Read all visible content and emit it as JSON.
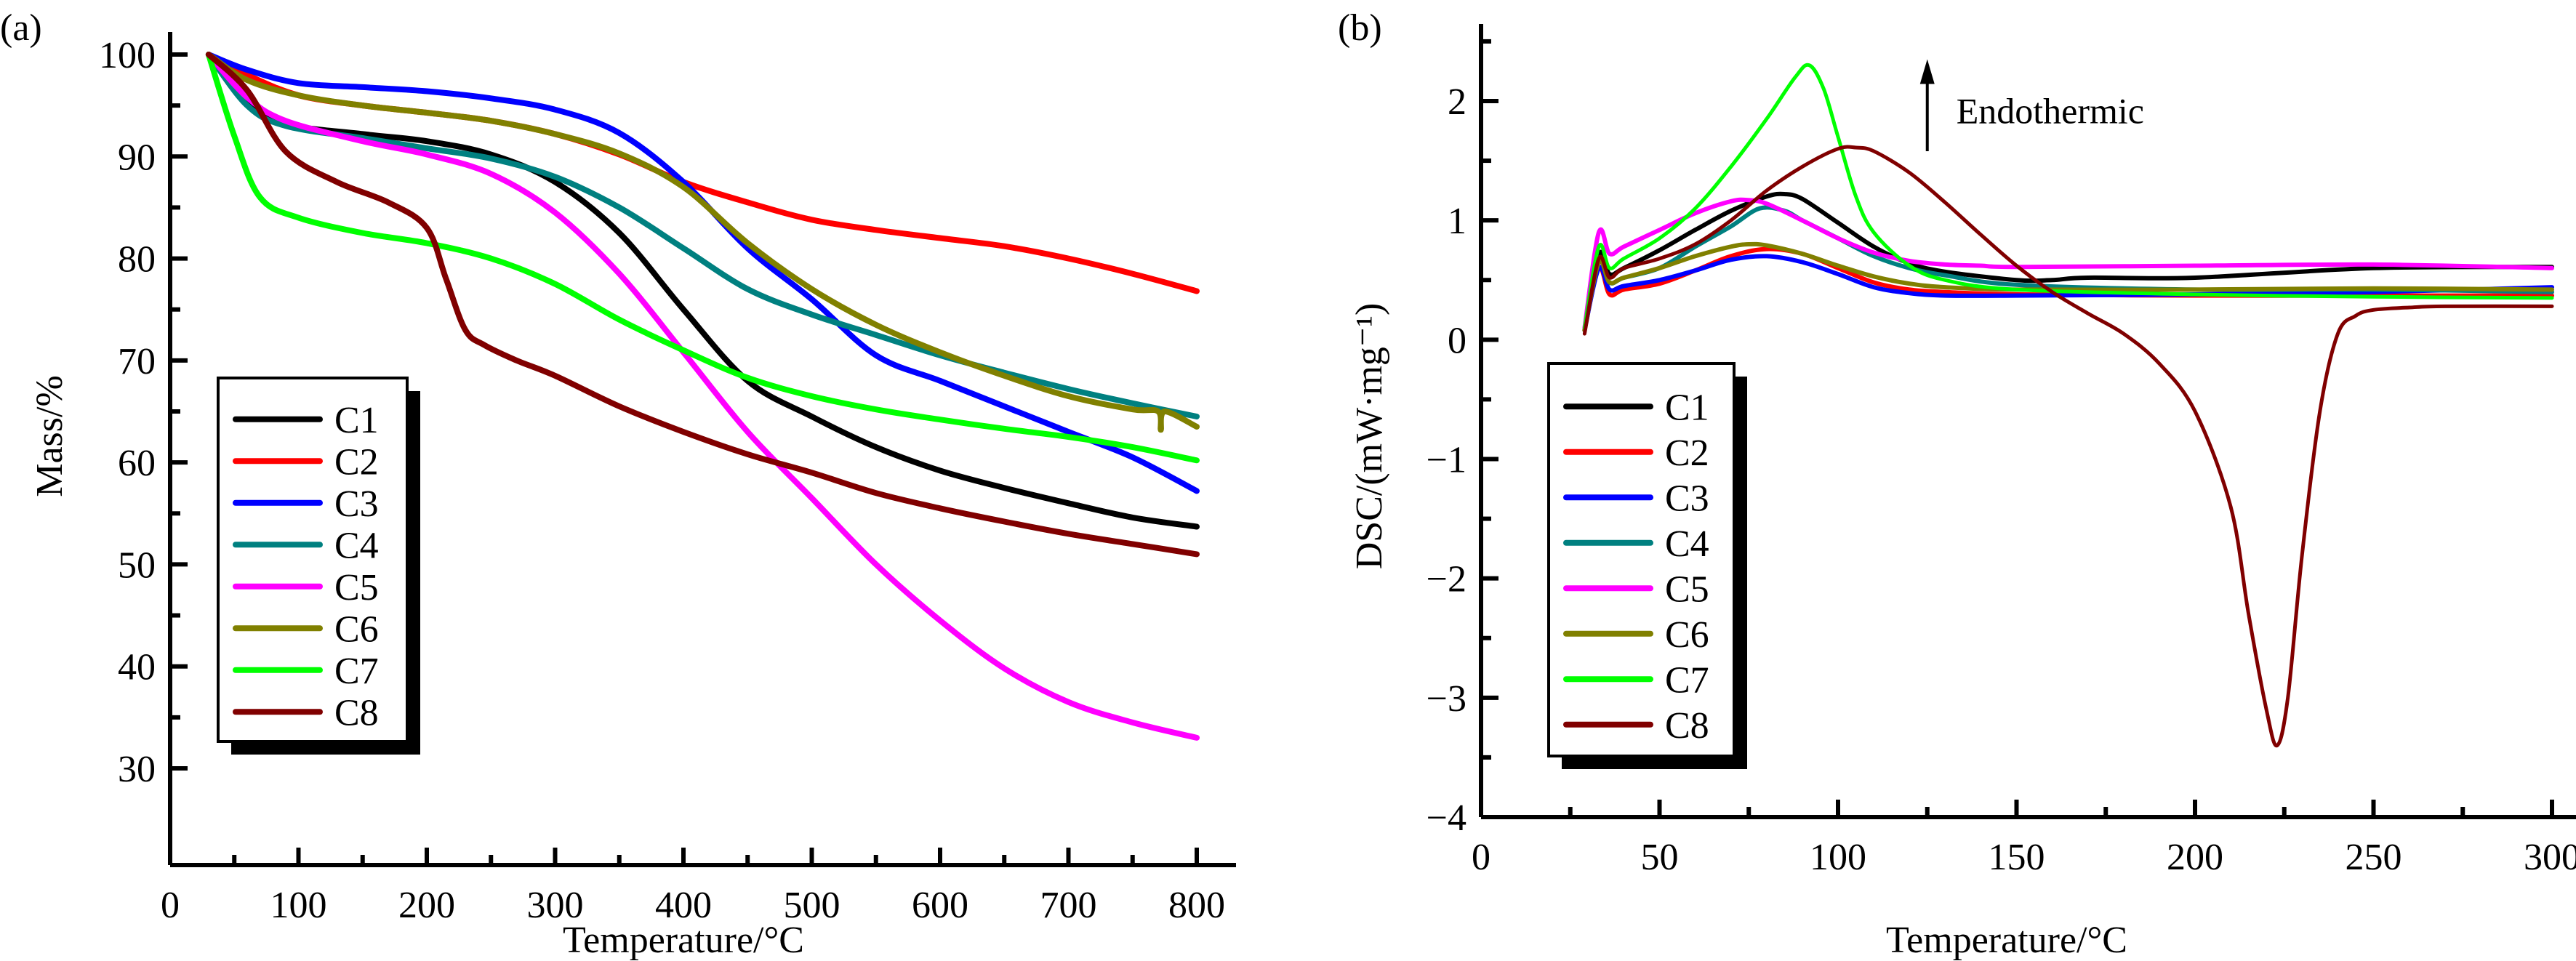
{
  "chart_data": [
    {
      "type": "line",
      "panel_label": "(a)",
      "title": "",
      "xlabel": "Temperature/°C",
      "ylabel": "Mass/%",
      "xlim": [
        0,
        800
      ],
      "ylim": [
        25,
        102
      ],
      "xticks": [
        0,
        100,
        200,
        300,
        400,
        500,
        600,
        700,
        800
      ],
      "xtick_labels": [
        "0",
        "100",
        "200",
        "300",
        "400",
        "500",
        "600",
        "700",
        "800"
      ],
      "yticks": [
        30,
        40,
        50,
        60,
        70,
        80,
        90,
        100
      ],
      "ytick_labels": [
        "30",
        "40",
        "50",
        "60",
        "70",
        "80",
        "90",
        "100"
      ],
      "grid": false,
      "legend_position": "lower-left",
      "series": [
        {
          "name": "C1",
          "color": "#000000",
          "x": [
            30,
            60,
            90,
            150,
            200,
            250,
            300,
            350,
            400,
            450,
            500,
            550,
            600,
            650,
            700,
            750,
            800
          ],
          "y": [
            100,
            95.5,
            93.2,
            92.2,
            91.5,
            90.2,
            87.5,
            82.5,
            75.0,
            68.0,
            64.5,
            61.5,
            59.2,
            57.5,
            56.0,
            54.6,
            53.7
          ]
        },
        {
          "name": "C2",
          "color": "#ff0000",
          "x": [
            30,
            60,
            100,
            150,
            200,
            250,
            300,
            350,
            400,
            450,
            500,
            550,
            600,
            650,
            700,
            750,
            800
          ],
          "y": [
            100,
            98.0,
            96.0,
            95.0,
            94.3,
            93.5,
            92.2,
            90.2,
            87.5,
            85.5,
            83.8,
            82.8,
            82.0,
            81.2,
            80.0,
            78.5,
            76.8
          ]
        },
        {
          "name": "C3",
          "color": "#0000ff",
          "x": [
            30,
            60,
            100,
            150,
            200,
            250,
            300,
            350,
            400,
            450,
            500,
            550,
            600,
            650,
            700,
            750,
            800
          ],
          "y": [
            100,
            98.5,
            97.2,
            96.8,
            96.4,
            95.7,
            94.6,
            92.3,
            87.5,
            81.0,
            76.0,
            70.5,
            68.0,
            65.5,
            63.0,
            60.5,
            57.2
          ]
        },
        {
          "name": "C4",
          "color": "#008080",
          "x": [
            30,
            60,
            90,
            150,
            200,
            250,
            300,
            350,
            400,
            450,
            500,
            550,
            600,
            650,
            700,
            750,
            800
          ],
          "y": [
            100,
            95.0,
            93.0,
            91.8,
            90.8,
            89.8,
            88.0,
            85.0,
            81.0,
            77.0,
            74.5,
            72.5,
            70.5,
            68.8,
            67.2,
            65.8,
            64.5
          ]
        },
        {
          "name": "C5",
          "color": "#ff00ff",
          "x": [
            30,
            60,
            90,
            150,
            200,
            250,
            300,
            350,
            400,
            450,
            500,
            550,
            600,
            650,
            700,
            750,
            800
          ],
          "y": [
            100,
            95.8,
            93.5,
            91.5,
            90.2,
            88.3,
            84.5,
            78.5,
            70.8,
            63.0,
            56.5,
            50.0,
            44.5,
            39.8,
            36.5,
            34.5,
            33.0
          ]
        },
        {
          "name": "C6",
          "color": "#808000",
          "x": [
            30,
            60,
            100,
            150,
            200,
            250,
            300,
            350,
            400,
            450,
            500,
            550,
            600,
            650,
            700,
            750,
            770,
            772,
            775,
            800
          ],
          "y": [
            100,
            97.5,
            96.0,
            95.0,
            94.3,
            93.5,
            92.2,
            90.3,
            87.0,
            81.5,
            77.0,
            73.5,
            70.8,
            68.5,
            66.5,
            65.2,
            65.0,
            63.2,
            65.0,
            63.5
          ]
        },
        {
          "name": "C7",
          "color": "#00ff00",
          "x": [
            30,
            50,
            70,
            100,
            150,
            200,
            250,
            300,
            350,
            400,
            450,
            500,
            550,
            600,
            650,
            700,
            750,
            800
          ],
          "y": [
            100,
            92.0,
            86.0,
            84.0,
            82.5,
            81.5,
            80.0,
            77.5,
            74.0,
            71.0,
            68.3,
            66.5,
            65.2,
            64.2,
            63.3,
            62.5,
            61.5,
            60.2
          ]
        },
        {
          "name": "C8",
          "color": "#800000",
          "x": [
            30,
            60,
            90,
            130,
            170,
            200,
            215,
            230,
            245,
            270,
            300,
            350,
            400,
            450,
            500,
            550,
            600,
            650,
            700,
            750,
            800
          ],
          "y": [
            100,
            96.5,
            90.5,
            87.5,
            85.5,
            83.0,
            78.0,
            73.0,
            71.5,
            70.0,
            68.5,
            65.5,
            63.0,
            60.8,
            59.0,
            57.0,
            55.5,
            54.2,
            53.0,
            52.0,
            51.0
          ]
        }
      ]
    },
    {
      "type": "line",
      "panel_label": "(b)",
      "title": "",
      "xlabel": "Temperature/°C",
      "ylabel": "DSC/(mW·mg⁻¹)",
      "xlim": [
        0,
        305
      ],
      "ylim": [
        -4,
        2.5
      ],
      "xticks": [
        0,
        50,
        100,
        150,
        200,
        250,
        300
      ],
      "xtick_labels": [
        "0",
        "50",
        "100",
        "150",
        "200",
        "250",
        "300"
      ],
      "yticks": [
        -4,
        -3,
        -2,
        -1,
        0,
        1,
        2
      ],
      "ytick_labels": [
        "−4",
        "−3",
        "−2",
        "−1",
        "0",
        "1",
        "2"
      ],
      "grid": false,
      "legend_position": "lower-left",
      "annotation": {
        "text": "Endothermic",
        "arrow": "up",
        "x": 125,
        "y_from": 1.58,
        "y_to": 2.35
      },
      "series": [
        {
          "name": "C1",
          "color": "#000000",
          "x": [
            29,
            33,
            36,
            40,
            50,
            60,
            70,
            80,
            85,
            90,
            100,
            110,
            120,
            130,
            150,
            160,
            170,
            200,
            250,
            300
          ],
          "y": [
            0.08,
            0.72,
            0.55,
            0.6,
            0.75,
            0.92,
            1.08,
            1.2,
            1.22,
            1.18,
            0.98,
            0.78,
            0.64,
            0.57,
            0.5,
            0.5,
            0.52,
            0.52,
            0.6,
            0.61
          ]
        },
        {
          "name": "C2",
          "color": "#ff0000",
          "x": [
            29,
            33,
            36,
            40,
            50,
            60,
            70,
            80,
            90,
            100,
            110,
            120,
            130,
            150,
            200,
            250,
            300
          ],
          "y": [
            0.08,
            0.6,
            0.38,
            0.42,
            0.47,
            0.58,
            0.7,
            0.76,
            0.72,
            0.6,
            0.48,
            0.42,
            0.4,
            0.38,
            0.37,
            0.37,
            0.37
          ]
        },
        {
          "name": "C3",
          "color": "#0000ff",
          "x": [
            29,
            33,
            36,
            40,
            50,
            60,
            70,
            80,
            90,
            100,
            110,
            120,
            130,
            150,
            200,
            250,
            300
          ],
          "y": [
            0.08,
            0.6,
            0.42,
            0.45,
            0.5,
            0.58,
            0.67,
            0.7,
            0.65,
            0.55,
            0.44,
            0.39,
            0.37,
            0.37,
            0.38,
            0.4,
            0.44
          ]
        },
        {
          "name": "C4",
          "color": "#008080",
          "x": [
            29,
            33,
            36,
            40,
            50,
            60,
            70,
            78,
            85,
            90,
            100,
            110,
            120,
            130,
            150,
            200,
            250,
            300
          ],
          "y": [
            0.08,
            0.68,
            0.48,
            0.52,
            0.6,
            0.78,
            0.95,
            1.1,
            1.08,
            1.0,
            0.85,
            0.7,
            0.6,
            0.54,
            0.46,
            0.42,
            0.42,
            0.4
          ]
        },
        {
          "name": "C5",
          "color": "#ff00ff",
          "x": [
            29,
            33,
            36,
            40,
            50,
            60,
            70,
            75,
            80,
            90,
            100,
            110,
            120,
            130,
            140,
            150,
            200,
            250,
            300
          ],
          "y": [
            0.1,
            0.9,
            0.72,
            0.78,
            0.92,
            1.06,
            1.16,
            1.17,
            1.14,
            1.0,
            0.85,
            0.73,
            0.66,
            0.63,
            0.62,
            0.61,
            0.62,
            0.63,
            0.6
          ]
        },
        {
          "name": "C6",
          "color": "#808000",
          "x": [
            29,
            33,
            36,
            40,
            50,
            60,
            70,
            75,
            80,
            90,
            100,
            110,
            120,
            130,
            150,
            200,
            250,
            300
          ],
          "y": [
            0.08,
            0.65,
            0.48,
            0.52,
            0.6,
            0.7,
            0.78,
            0.8,
            0.79,
            0.72,
            0.62,
            0.53,
            0.47,
            0.44,
            0.42,
            0.42,
            0.43,
            0.42
          ]
        },
        {
          "name": "C7",
          "color": "#00ff00",
          "x": [
            29,
            33,
            36,
            40,
            50,
            60,
            70,
            80,
            88,
            92,
            96,
            100,
            105,
            110,
            120,
            130,
            150,
            200,
            250,
            300
          ],
          "y": [
            0.1,
            0.78,
            0.6,
            0.68,
            0.85,
            1.1,
            1.45,
            1.85,
            2.2,
            2.3,
            2.1,
            1.7,
            1.2,
            0.9,
            0.62,
            0.5,
            0.42,
            0.38,
            0.36,
            0.35
          ]
        },
        {
          "name": "C8",
          "color": "#800000",
          "x": [
            29,
            33,
            36,
            40,
            50,
            60,
            70,
            80,
            90,
            100,
            105,
            110,
            120,
            130,
            140,
            150,
            160,
            170,
            180,
            190,
            200,
            210,
            215,
            220,
            223,
            226,
            230,
            235,
            240,
            245,
            250,
            260,
            270,
            300
          ],
          "y": [
            0.05,
            0.68,
            0.52,
            0.6,
            0.68,
            0.8,
            1.0,
            1.25,
            1.45,
            1.6,
            1.61,
            1.58,
            1.4,
            1.15,
            0.88,
            0.62,
            0.4,
            0.22,
            0.05,
            -0.2,
            -0.6,
            -1.4,
            -2.3,
            -3.1,
            -3.4,
            -3.0,
            -1.8,
            -0.6,
            0.05,
            0.2,
            0.25,
            0.27,
            0.28,
            0.28
          ]
        }
      ]
    }
  ]
}
